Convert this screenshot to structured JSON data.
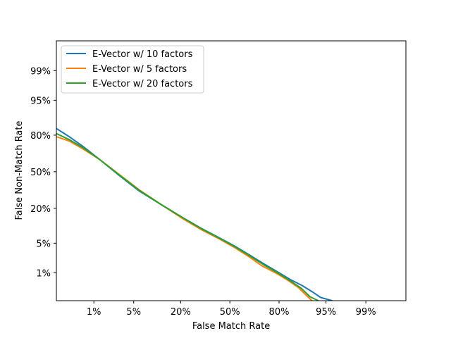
{
  "chart_data": {
    "type": "line",
    "xlabel": "False Match Rate",
    "ylabel": "False Non-Match Rate",
    "scale": "probit",
    "x_ticks": [
      {
        "value": 0.01,
        "label": "1%"
      },
      {
        "value": 0.05,
        "label": "5%"
      },
      {
        "value": 0.2,
        "label": "20%"
      },
      {
        "value": 0.5,
        "label": "50%"
      },
      {
        "value": 0.8,
        "label": "80%"
      },
      {
        "value": 0.95,
        "label": "95%"
      },
      {
        "value": 0.99,
        "label": "99%"
      }
    ],
    "y_ticks": [
      {
        "value": 0.01,
        "label": "1%"
      },
      {
        "value": 0.05,
        "label": "5%"
      },
      {
        "value": 0.2,
        "label": "20%"
      },
      {
        "value": 0.5,
        "label": "50%"
      },
      {
        "value": 0.8,
        "label": "80%"
      },
      {
        "value": 0.95,
        "label": "95%"
      },
      {
        "value": 0.99,
        "label": "99%"
      }
    ],
    "xlim": [
      0.0015,
      0.9987
    ],
    "ylim": [
      0.0015,
      0.9987
    ],
    "grid": false,
    "legend_position": "top-left",
    "series": [
      {
        "name": "E-Vector w/ 10 factors",
        "color": "#1f77b4",
        "x": [
          0.0015,
          0.003,
          0.006,
          0.013,
          0.03,
          0.06,
          0.12,
          0.21,
          0.31,
          0.42,
          0.53,
          0.63,
          0.72,
          0.8,
          0.85,
          0.89,
          0.92,
          0.94,
          0.96
        ],
        "y": [
          0.84,
          0.79,
          0.72,
          0.61,
          0.46,
          0.33,
          0.225,
          0.145,
          0.097,
          0.066,
          0.044,
          0.028,
          0.017,
          0.01,
          0.0065,
          0.0045,
          0.0029,
          0.0019,
          0.0015
        ]
      },
      {
        "name": "E-Vector w/ 5 factors",
        "color": "#ff7f0e",
        "x": [
          0.0015,
          0.003,
          0.006,
          0.013,
          0.03,
          0.06,
          0.12,
          0.21,
          0.31,
          0.42,
          0.53,
          0.63,
          0.71,
          0.79,
          0.84,
          0.88,
          0.905,
          0.92
        ],
        "y": [
          0.79,
          0.76,
          0.7,
          0.61,
          0.47,
          0.34,
          0.225,
          0.14,
          0.092,
          0.063,
          0.041,
          0.025,
          0.015,
          0.0095,
          0.0062,
          0.0038,
          0.0022,
          0.0015
        ]
      },
      {
        "name": "E-Vector w/ 20 factors",
        "color": "#2ca02c",
        "x": [
          0.0015,
          0.003,
          0.006,
          0.013,
          0.03,
          0.06,
          0.12,
          0.21,
          0.31,
          0.42,
          0.53,
          0.63,
          0.72,
          0.8,
          0.85,
          0.89,
          0.915,
          0.935
        ],
        "y": [
          0.81,
          0.77,
          0.71,
          0.61,
          0.465,
          0.335,
          0.225,
          0.145,
          0.096,
          0.065,
          0.043,
          0.027,
          0.016,
          0.0095,
          0.006,
          0.0036,
          0.002,
          0.0015
        ]
      }
    ]
  }
}
